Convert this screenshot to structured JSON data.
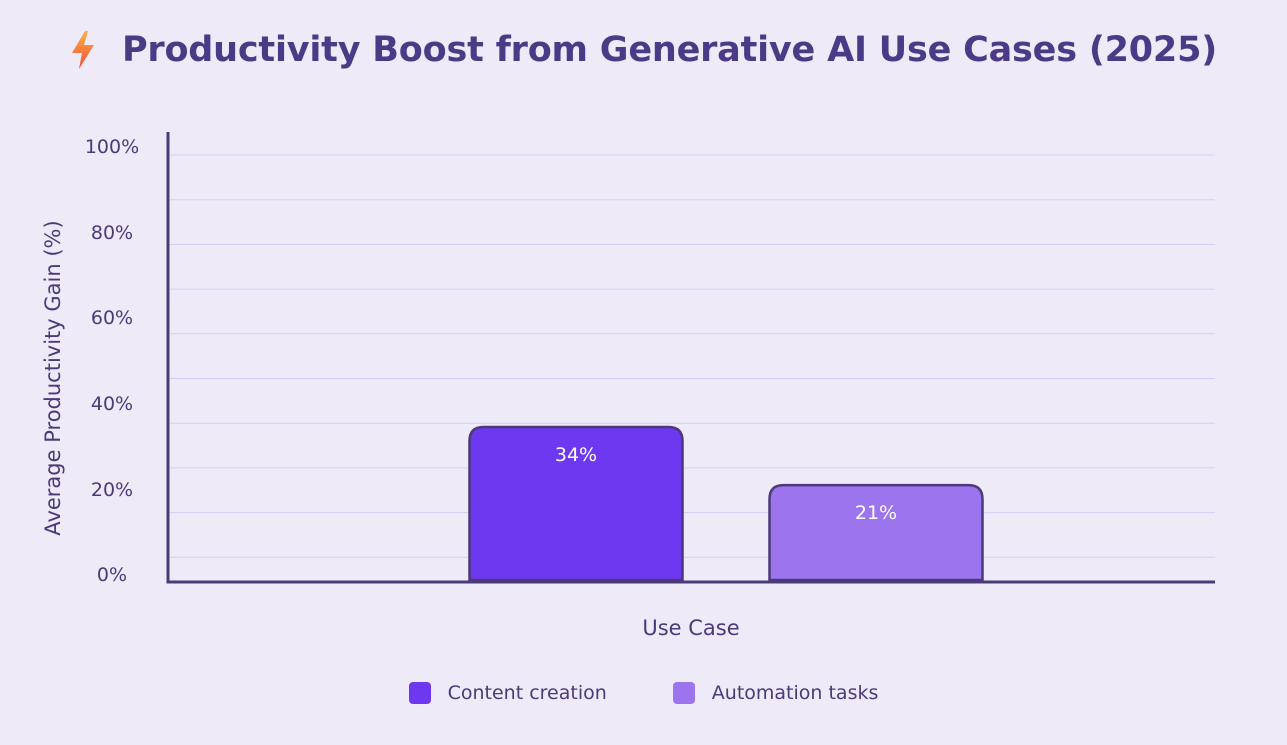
{
  "header": {
    "icon": "lightning-bolt-icon",
    "title": "Productivity Boost from Generative AI Use Cases (2025)"
  },
  "chart_data": {
    "type": "bar",
    "title": "Productivity Boost from Generative AI Use Cases (2025)",
    "xlabel": "Use Case",
    "ylabel": "Average Productivity Gain (%)",
    "ylim": [
      0,
      100
    ],
    "y_ticks": [
      "0%",
      "20%",
      "40%",
      "60%",
      "80%",
      "100%"
    ],
    "grid": true,
    "legend_position": "bottom",
    "series": [
      {
        "name": "Content creation",
        "value": 34,
        "label": "34%",
        "color": "#6d38f0"
      },
      {
        "name": "Automation tasks",
        "value": 21,
        "label": "21%",
        "color": "#9b74ee"
      }
    ]
  },
  "colors": {
    "background": "#efeaf8",
    "axis": "#4b3a78",
    "grid": "#d6cdf4",
    "text": "#4b3a78"
  }
}
